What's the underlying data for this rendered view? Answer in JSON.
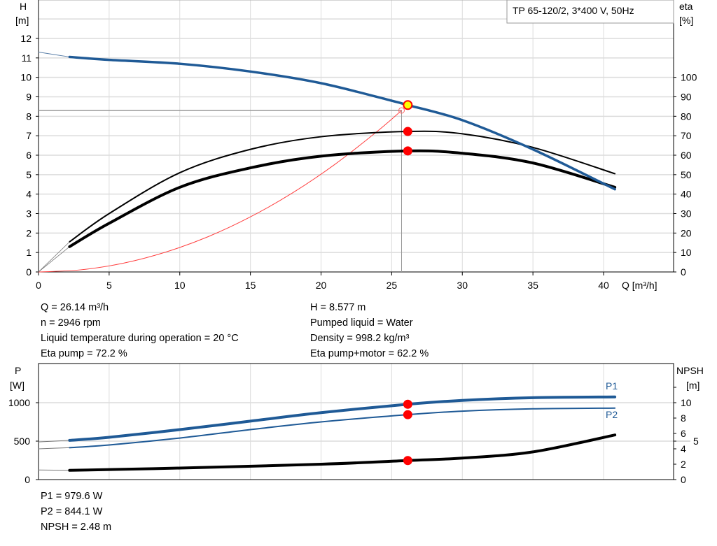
{
  "chart_data": [
    {
      "type": "line",
      "title": "TP 65-120/2, 3*400 V, 50Hz",
      "xlabel": "Q [m³/h]",
      "ylabel_left": [
        "H",
        "[m]"
      ],
      "ylabel_right": [
        "eta",
        "[%]"
      ],
      "xlim": [
        0,
        45
      ],
      "ylim_left": [
        0,
        14
      ],
      "ylim_right": [
        0,
        140
      ],
      "x_ticks": [
        0,
        5,
        10,
        15,
        20,
        25,
        30,
        35,
        40
      ],
      "y_ticks_left": [
        0,
        1,
        2,
        3,
        4,
        5,
        6,
        7,
        8,
        9,
        10,
        11,
        12
      ],
      "y_ticks_right": [
        0,
        10,
        20,
        30,
        40,
        50,
        60,
        70,
        80,
        90,
        100
      ],
      "grid": true,
      "series": [
        {
          "key": "H",
          "axis": "left",
          "color": "#1f5a96",
          "x": [
            2.2,
            5,
            10,
            15,
            20,
            25,
            26.14,
            30,
            35,
            40.8
          ],
          "y": [
            11.05,
            10.9,
            10.7,
            10.3,
            9.7,
            8.8,
            8.577,
            7.8,
            6.3,
            4.25
          ],
          "extension": {
            "x": [
              0,
              2.2
            ],
            "y": [
              11.3,
              11.05
            ]
          }
        },
        {
          "key": "eta_pump",
          "axis": "right",
          "color": "#000000",
          "x": [
            2.2,
            5,
            10,
            15,
            20,
            26.14,
            30,
            35,
            40.8
          ],
          "y": [
            15.5,
            30,
            51,
            63,
            69.5,
            72.2,
            71,
            64,
            50.5
          ]
        },
        {
          "key": "eta_pump_motor",
          "axis": "right",
          "color": "#000000",
          "x": [
            2.2,
            5,
            10,
            15,
            20,
            26.14,
            30,
            35,
            40.8
          ],
          "y": [
            13,
            25,
            43.5,
            53.5,
            59.5,
            62.2,
            61,
            56,
            43.5
          ]
        },
        {
          "key": "system",
          "axis": "left",
          "color": "#ff4040",
          "x": [
            0,
            3,
            6,
            9,
            12,
            15,
            18,
            21,
            24,
            25.7
          ],
          "y": [
            0,
            0.11,
            0.45,
            1.02,
            1.81,
            2.83,
            4.07,
            5.54,
            7.24,
            8.3
          ]
        }
      ],
      "duty_point": {
        "q": 26.14,
        "h": 8.577,
        "eta_pump": 72.2,
        "eta_pump_motor": 62.2
      },
      "requested_point": {
        "q": 25.7,
        "h": 8.3
      }
    },
    {
      "type": "line",
      "ylabel_left": [
        "P",
        "[W]"
      ],
      "ylabel_right": [
        "NPSH",
        "[m]"
      ],
      "xlim": [
        0,
        45
      ],
      "ylim_left": [
        0,
        1500
      ],
      "ylim_right": [
        0,
        15
      ],
      "y_ticks_left": [
        0,
        500,
        1000
      ],
      "y_ticks_right": [
        0,
        2,
        4,
        5,
        6,
        8,
        10
      ],
      "grid": true,
      "series": [
        {
          "key": "P1",
          "name": "P1",
          "axis": "left",
          "color": "#1f5a96",
          "x": [
            2.2,
            5,
            10,
            15,
            20,
            26.14,
            30,
            35,
            40.8
          ],
          "y": [
            510,
            550,
            650,
            760,
            870,
            979.6,
            1030,
            1065,
            1075
          ],
          "extension": {
            "x": [
              0,
              2.2
            ],
            "y": [
              490,
              510
            ]
          }
        },
        {
          "key": "P2",
          "name": "P2",
          "axis": "left",
          "color": "#1f5a96",
          "x": [
            2.2,
            5,
            10,
            15,
            20,
            26.14,
            30,
            35,
            40.8
          ],
          "y": [
            415,
            450,
            540,
            650,
            750,
            844.1,
            890,
            920,
            930
          ],
          "extension": {
            "x": [
              0,
              2.2
            ],
            "y": [
              400,
              415
            ]
          }
        },
        {
          "key": "NPSH",
          "axis": "right",
          "color": "#000000",
          "x": [
            2.2,
            10,
            20,
            26.14,
            30,
            35,
            40.8
          ],
          "y": [
            1.2,
            1.5,
            2.0,
            2.48,
            2.8,
            3.6,
            5.8
          ],
          "extension": {
            "x": [
              0,
              2.2
            ],
            "y": [
              1.25,
              1.2
            ]
          }
        }
      ],
      "duty_point": {
        "q": 26.14,
        "p1": 979.6,
        "p2": 844.1,
        "npsh": 2.48
      }
    }
  ],
  "info": {
    "col1": [
      "Q = 26.14 m³/h",
      "n = 2946 rpm",
      "Liquid temperature during operation = 20 °C",
      "Eta pump = 72.2 %"
    ],
    "col2": [
      "H = 8.577 m",
      "Pumped liquid = Water",
      "Density = 998.2 kg/m³",
      "Eta pump+motor = 62.2 %"
    ],
    "bottom": [
      "P1 = 979.6 W",
      "P2 = 844.1 W",
      "NPSH = 2.48 m"
    ]
  },
  "colors": {
    "blue": "#1f5a96",
    "marker": "#ff0000",
    "duty": "#ffff00",
    "grid": "#dcdcdc"
  }
}
